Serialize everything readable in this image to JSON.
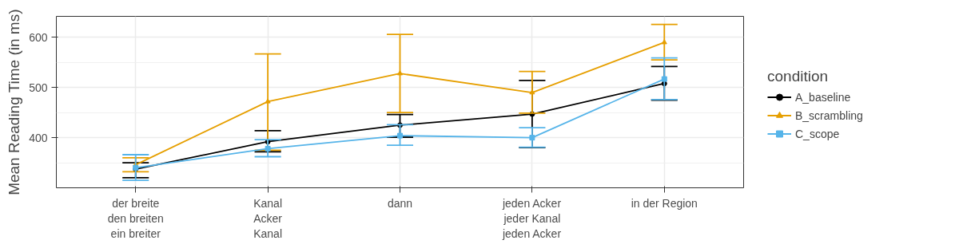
{
  "chart_data": {
    "type": "line",
    "ylabel": "Mean Reading Time (in ms)",
    "legend_title": "condition",
    "categories": [
      "der breite\nden breiten\nein breiter",
      "Kanal\nAcker\nKanal",
      "dann",
      "jeden Acker\njeder Kanal\njeden Acker",
      "in der Region"
    ],
    "series": [
      {
        "name": "A_baseline",
        "color": "#000000",
        "marker": "circle",
        "values": [
          337,
          392,
          425,
          447,
          508
        ],
        "errors": [
          [
            320,
            350
          ],
          [
            372,
            414
          ],
          [
            401,
            446
          ],
          [
            380,
            514
          ],
          [
            475,
            542
          ]
        ]
      },
      {
        "name": "B_scrambling",
        "color": "#e69f00",
        "marker": "triangle",
        "values": [
          346,
          472,
          528,
          490,
          590
        ],
        "errors": [
          [
            332,
            360
          ],
          [
            375,
            567
          ],
          [
            450,
            606
          ],
          [
            449,
            532
          ],
          [
            555,
            626
          ]
        ]
      },
      {
        "name": "C_scope",
        "color": "#56b4e9",
        "marker": "square",
        "values": [
          340,
          378,
          404,
          400,
          517
        ],
        "errors": [
          [
            315,
            366
          ],
          [
            362,
            396
          ],
          [
            385,
            426
          ],
          [
            381,
            420
          ],
          [
            476,
            559
          ]
        ]
      }
    ],
    "ylim": [
      300,
      642
    ],
    "yticks": [
      400,
      500,
      600
    ],
    "grid": true,
    "legend": "right"
  }
}
